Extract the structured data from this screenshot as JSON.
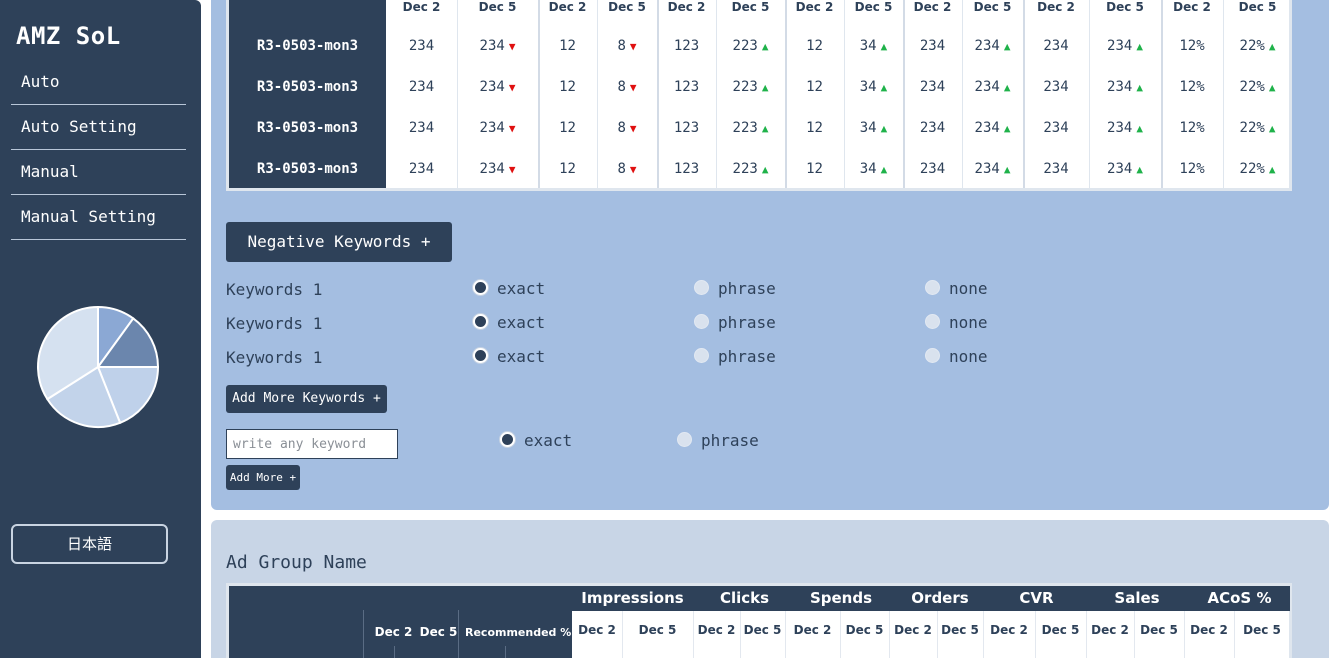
{
  "sidebar": {
    "logo": "AMZ SoL",
    "nav": [
      {
        "label": "Auto"
      },
      {
        "label": "Auto Setting"
      },
      {
        "label": "Manual"
      },
      {
        "label": "Manual Setting"
      }
    ],
    "language_button": "日本語"
  },
  "pie_chart": {
    "slices": [
      {
        "share": 0.1,
        "color": "#8ba8d4"
      },
      {
        "share": 0.15,
        "color": "#6b86ad"
      },
      {
        "share": 0.19,
        "color": "#bfd1ea"
      },
      {
        "share": 0.22,
        "color": "#c2d3ea"
      },
      {
        "share": 0.34,
        "color": "#d5e1f0"
      }
    ]
  },
  "campaign_table": {
    "date_headers": [
      "Dec 2",
      "Dec 5",
      "Dec 2",
      "Dec 5",
      "Dec 2",
      "Dec 5",
      "Dec 2",
      "Dec 5",
      "Dec 2",
      "Dec 5",
      "Dec 2",
      "Dec 5",
      "Dec 2",
      "Dec 5"
    ],
    "rows": [
      {
        "name": "R3-0503-mon3",
        "cells": [
          {
            "v": "234"
          },
          {
            "v": "234",
            "trend": "down"
          },
          {
            "v": "12"
          },
          {
            "v": "8",
            "trend": "down"
          },
          {
            "v": "123"
          },
          {
            "v": "223",
            "trend": "up"
          },
          {
            "v": "12"
          },
          {
            "v": "34",
            "trend": "up"
          },
          {
            "v": "234"
          },
          {
            "v": "234",
            "trend": "up"
          },
          {
            "v": "234"
          },
          {
            "v": "234",
            "trend": "up"
          },
          {
            "v": "12%"
          },
          {
            "v": "22%",
            "trend": "up"
          }
        ]
      },
      {
        "name": "R3-0503-mon3",
        "cells": [
          {
            "v": "234"
          },
          {
            "v": "234",
            "trend": "down"
          },
          {
            "v": "12"
          },
          {
            "v": "8",
            "trend": "down"
          },
          {
            "v": "123"
          },
          {
            "v": "223",
            "trend": "up"
          },
          {
            "v": "12"
          },
          {
            "v": "34",
            "trend": "up"
          },
          {
            "v": "234"
          },
          {
            "v": "234",
            "trend": "up"
          },
          {
            "v": "234"
          },
          {
            "v": "234",
            "trend": "up"
          },
          {
            "v": "12%"
          },
          {
            "v": "22%",
            "trend": "up"
          }
        ]
      },
      {
        "name": "R3-0503-mon3",
        "cells": [
          {
            "v": "234"
          },
          {
            "v": "234",
            "trend": "down"
          },
          {
            "v": "12"
          },
          {
            "v": "8",
            "trend": "down"
          },
          {
            "v": "123"
          },
          {
            "v": "223",
            "trend": "up"
          },
          {
            "v": "12"
          },
          {
            "v": "34",
            "trend": "up"
          },
          {
            "v": "234"
          },
          {
            "v": "234",
            "trend": "up"
          },
          {
            "v": "234"
          },
          {
            "v": "234",
            "trend": "up"
          },
          {
            "v": "12%"
          },
          {
            "v": "22%",
            "trend": "up"
          }
        ]
      },
      {
        "name": "R3-0503-mon3",
        "cells": [
          {
            "v": "234"
          },
          {
            "v": "234",
            "trend": "down"
          },
          {
            "v": "12"
          },
          {
            "v": "8",
            "trend": "down"
          },
          {
            "v": "123"
          },
          {
            "v": "223",
            "trend": "up"
          },
          {
            "v": "12"
          },
          {
            "v": "34",
            "trend": "up"
          },
          {
            "v": "234"
          },
          {
            "v": "234",
            "trend": "up"
          },
          {
            "v": "234"
          },
          {
            "v": "234",
            "trend": "up"
          },
          {
            "v": "12%"
          },
          {
            "v": "22%",
            "trend": "up"
          }
        ]
      }
    ]
  },
  "negative_keywords": {
    "button_label": "Negative Keywords +",
    "rows": [
      {
        "label": "Keywords 1",
        "options": [
          "exact",
          "phrase",
          "none"
        ],
        "selected": "exact"
      },
      {
        "label": "Keywords 1",
        "options": [
          "exact",
          "phrase",
          "none"
        ],
        "selected": "exact"
      },
      {
        "label": "Keywords 1",
        "options": [
          "exact",
          "phrase",
          "none"
        ],
        "selected": "exact"
      }
    ],
    "add_more_keywords_label": "Add More Keywords +",
    "input_placeholder": "write any keyword",
    "new_options": [
      "exact",
      "phrase"
    ],
    "new_selected": "exact",
    "add_more_label": "Add More +"
  },
  "ad_group": {
    "title": "Ad Group Name",
    "sub_headers": [
      "Dec 2",
      "Dec 5",
      "Recommended %"
    ],
    "metrics": [
      "Impressions",
      "Clicks",
      "Spends",
      "Orders",
      "CVR",
      "Sales",
      "ACoS %"
    ],
    "date_headers": [
      "Dec 2",
      "Dec 5",
      "Dec 2",
      "Dec 5",
      "Dec 2",
      "Dec 5",
      "Dec 2",
      "Dec 5",
      "Dec 2",
      "Dec 5",
      "Dec 2",
      "Dec 5",
      "Dec 2",
      "Dec 5"
    ]
  },
  "colors": {
    "sidebar": "#2e4159",
    "panel_main": "#a4bee1",
    "panel_lower": "#c8d5e6",
    "trend_up": "#1fb24a",
    "trend_down": "#e01010"
  }
}
